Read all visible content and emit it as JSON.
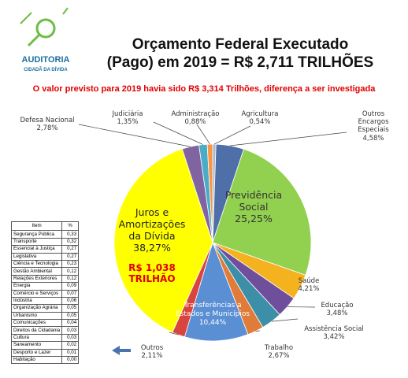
{
  "logo": {
    "name": "AUDITORIA",
    "tagline": "CIDADÃ DA DÍVIDA"
  },
  "chart_data": {
    "type": "pie",
    "title": [
      "Orçamento Federal Executado",
      "(Pago) em 2019 = R$ 2,711 TRILHÕES"
    ],
    "subtitle": "O valor previsto para 2019 havia sido R$ 3,314 Trilhões, diferença a ser investigada",
    "categories": [
      "Agricultura",
      "Outros Encargos Especiais",
      "Previdência Social",
      "Saúde",
      "Educação",
      "Assistência Social",
      "Trabalho",
      "Transferências a Estados e Municípios",
      "Outros",
      "Juros e Amortizações da Dívida",
      "Defesa Nacional",
      "Judiciária",
      "Administração"
    ],
    "values": [
      0.54,
      4.58,
      25.25,
      4.21,
      3.48,
      3.42,
      2.67,
      10.44,
      2.11,
      38.27,
      2.78,
      1.35,
      0.88
    ],
    "value_labels": [
      "0,54%",
      "4,58%",
      "25,25%",
      "4,21%",
      "3,48%",
      "3,42%",
      "2,67%",
      "10,44%",
      "2,11%",
      "38,27%",
      "2,78%",
      "1,35%",
      "0,88%"
    ],
    "colors": [
      "#a9b8d4",
      "#4f6fa8",
      "#92d050",
      "#f5b21f",
      "#6f4f9c",
      "#3c8fa6",
      "#e07b39",
      "#5b8fd4",
      "#d9443e",
      "#ffff00",
      "#8064a2",
      "#4bacc6",
      "#f79646"
    ],
    "annotation": "R$ 1,038 TRILHÃO",
    "table": {
      "header": [
        "Item",
        "%"
      ],
      "rows": [
        [
          "Segurança Pública",
          "0,33"
        ],
        [
          "Transporte",
          "0,32"
        ],
        [
          "Essencial à Justiça",
          "0,27"
        ],
        [
          "Legislativa",
          "0,27"
        ],
        [
          "Ciência e Tecnologia",
          "0,23"
        ],
        [
          "Gestão Ambiental",
          "0,12"
        ],
        [
          "Relações Exteriores",
          "0,12"
        ],
        [
          "Energia",
          "0,09"
        ],
        [
          "Comércio e Serviços",
          "0,07"
        ],
        [
          "Indústria",
          "0,06"
        ],
        [
          "Organização Agrária",
          "0,05"
        ],
        [
          "Urbanismo",
          "0,05"
        ],
        [
          "Comunicações",
          "0,04"
        ],
        [
          "Direitos da Cidadania",
          "0,03"
        ],
        [
          "Cultura",
          "0,03"
        ],
        [
          "Saneamento",
          "0,02"
        ],
        [
          "Desporto e Lazer",
          "0,01"
        ],
        [
          "Habitação",
          "0,00"
        ]
      ]
    }
  }
}
